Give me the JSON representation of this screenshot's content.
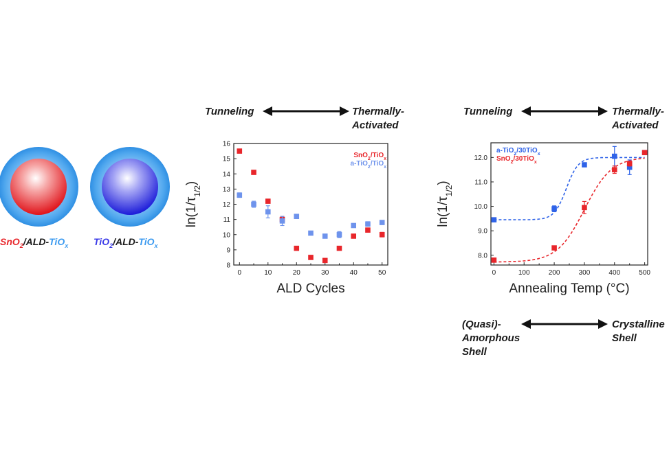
{
  "particles": {
    "snO2": {
      "core": "SnO",
      "core_sub": "2",
      "sep": "/ALD-",
      "shell": "TiO",
      "shell_sub": "x",
      "core_color": "#e8262b",
      "shell_color": "#3d9bf0"
    },
    "tiO2": {
      "core": "TiO",
      "core_sub": "2",
      "sep": "/ALD-",
      "shell": "TiO",
      "shell_sub": "x",
      "core_color": "#3a3ae8",
      "shell_color": "#3d9bf0"
    }
  },
  "panel1": {
    "left_label": "Tunneling",
    "right_label_1": "Thermally-",
    "right_label_2": "Activated"
  },
  "panel2": {
    "top_left_label": "Tunneling",
    "top_right_label_1": "Thermally-",
    "top_right_label_2": "Activated",
    "bottom_left_1": "(Quasi)-",
    "bottom_left_2": "Amorphous",
    "bottom_left_3": "Shell",
    "bottom_right_1": "Crystalline",
    "bottom_right_2": "Shell"
  },
  "chart_data": [
    {
      "type": "scatter",
      "xlabel": "ALD Cycles",
      "ylabel": "ln(1/τ1/2)",
      "ylabel_main": "ln(1/τ",
      "ylabel_sub": "1/2",
      "ylabel_close": ")",
      "xlim": [
        -2,
        52
      ],
      "ylim": [
        8,
        16
      ],
      "xticks": [
        "0",
        "10",
        "20",
        "30",
        "40",
        "50"
      ],
      "yticks": [
        "8",
        "9",
        "10",
        "11",
        "12",
        "13",
        "14",
        "15",
        "16"
      ],
      "legend_position": "top-right",
      "series": [
        {
          "name": "SnO2/TiOx",
          "label_main": "SnO",
          "label_sub1": "2",
          "label_mid": "/TiO",
          "label_sub2": "x",
          "color": "#e8262b",
          "x": [
            0,
            5,
            10,
            15,
            20,
            25,
            30,
            35,
            40,
            45,
            50
          ],
          "y": [
            15.5,
            14.1,
            12.2,
            11.0,
            9.1,
            8.5,
            8.3,
            9.1,
            9.9,
            10.3,
            10.0
          ],
          "err": [
            0,
            0,
            0,
            0.2,
            0.1,
            0,
            0,
            0.1,
            0,
            0,
            0.15
          ]
        },
        {
          "name": "a-TiO2/TiOx",
          "label_main": "a-TiO",
          "label_sub1": "2",
          "label_mid": "/TiO",
          "label_sub2": "x",
          "color": "#6e93ec",
          "x": [
            0,
            5,
            10,
            15,
            20,
            25,
            30,
            35,
            40,
            45,
            50
          ],
          "y": [
            12.6,
            12.0,
            11.5,
            10.9,
            11.2,
            10.1,
            9.9,
            10.0,
            10.6,
            10.7,
            10.8
          ],
          "err": [
            0.15,
            0.2,
            0.4,
            0.3,
            0.1,
            0,
            0,
            0.2,
            0,
            0.15,
            0
          ]
        }
      ]
    },
    {
      "type": "scatter",
      "xlabel": "Annealing Temp (°C)",
      "ylabel": "ln(1/τ1/2)",
      "ylabel_main": "ln(1/τ",
      "ylabel_sub": "1/2",
      "ylabel_close": ")",
      "xlim": [
        -10,
        510
      ],
      "ylim": [
        7.6,
        12.6
      ],
      "xticks": [
        "0",
        "100",
        "200",
        "300",
        "400",
        "500"
      ],
      "yticks": [
        "8.0",
        "9.0",
        "10.0",
        "11.0",
        "12.0"
      ],
      "legend_position": "top-left",
      "series": [
        {
          "name": "a-TiO2/30TiOx",
          "label_main": "a-TiO",
          "label_sub1": "2",
          "label_mid": "/30TiO",
          "label_sub2": "x",
          "color": "#2f63e8",
          "x": [
            0,
            200,
            300,
            400,
            450,
            500
          ],
          "y": [
            9.45,
            9.9,
            11.7,
            12.05,
            11.6,
            12.2
          ],
          "err": [
            0.08,
            0.12,
            0,
            0.4,
            0.3,
            0.05
          ],
          "fit": {
            "base": 9.45,
            "amp": 2.55,
            "x0": 240,
            "w": 20
          }
        },
        {
          "name": "SnO2/30TiOx",
          "label_main": "SnO",
          "label_sub1": "2",
          "label_mid": "/30TiO",
          "label_sub2": "x",
          "color": "#e8262b",
          "x": [
            0,
            200,
            300,
            400,
            450,
            500
          ],
          "y": [
            7.8,
            8.3,
            9.95,
            11.5,
            11.75,
            12.2
          ],
          "err": [
            0.08,
            0,
            0.25,
            0.15,
            0.1,
            0.05
          ],
          "fit": {
            "base": 7.72,
            "amp": 4.3,
            "x0": 300,
            "w": 45
          }
        }
      ]
    }
  ]
}
